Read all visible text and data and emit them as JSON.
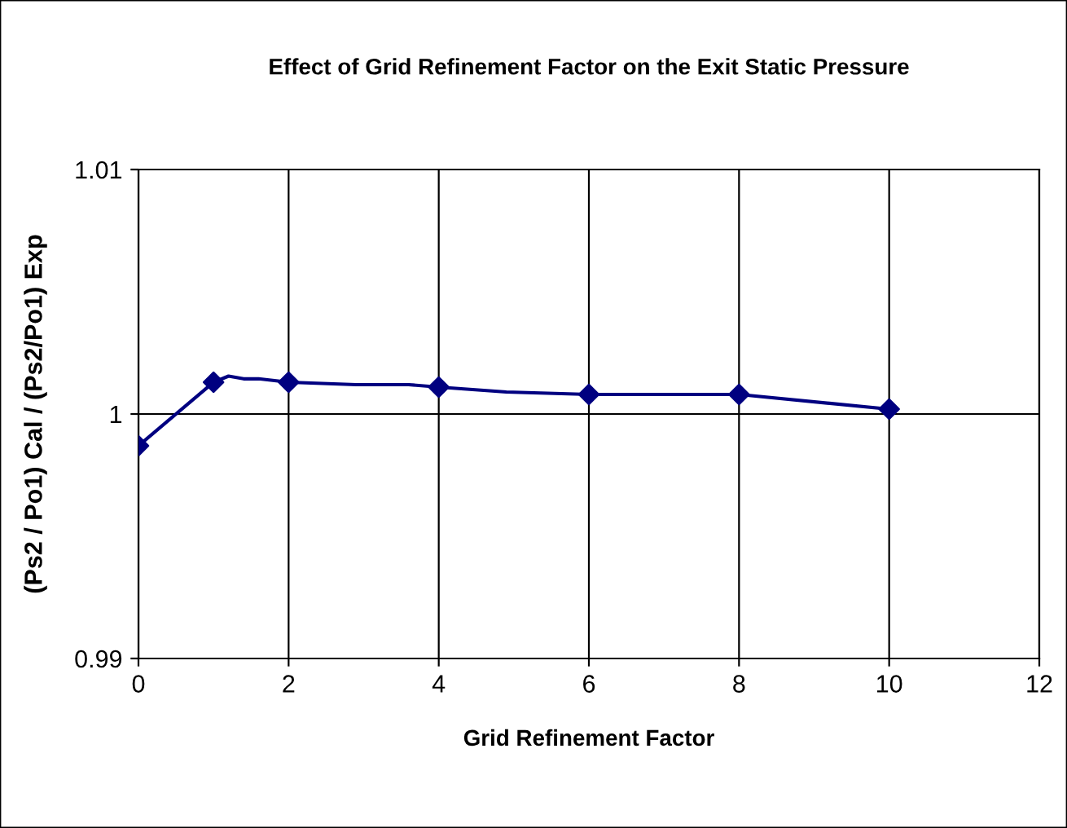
{
  "chart_data": {
    "type": "line",
    "title": "Effect of Grid Refinement Factor on the Exit Static Pressure",
    "xlabel": "Grid Refinement Factor",
    "ylabel": "(Ps2 / Po1) Cal / (Ps2/Po1) Exp",
    "series": [
      {
        "color": "#000080",
        "marker": "none",
        "x": [
          0,
          1,
          1.2,
          1.4,
          1.6,
          2,
          2.9,
          3.6,
          4,
          4.9,
          6,
          8,
          10
        ],
        "values": [
          0.9987,
          1.0013,
          1.00155,
          1.00144,
          1.00144,
          1.0013,
          1.0012,
          1.0012,
          1.0011,
          1.0009,
          1.0008,
          1.0008,
          1.0002
        ]
      },
      {
        "type": "scatter",
        "color": "#000080",
        "marker": "diamond",
        "x": [
          0,
          1,
          2,
          4,
          6,
          8,
          10
        ],
        "values": [
          0.9987,
          1.0013,
          1.0013,
          1.0011,
          1.0008,
          1.0008,
          1.0002
        ]
      }
    ],
    "xlim": [
      0,
      12
    ],
    "xticks": [
      0,
      2,
      4,
      6,
      8,
      10,
      12
    ],
    "ylim": [
      0.99,
      1.01
    ],
    "yticks": [
      0.99,
      1,
      1.01
    ],
    "grid": true,
    "legend": false
  }
}
